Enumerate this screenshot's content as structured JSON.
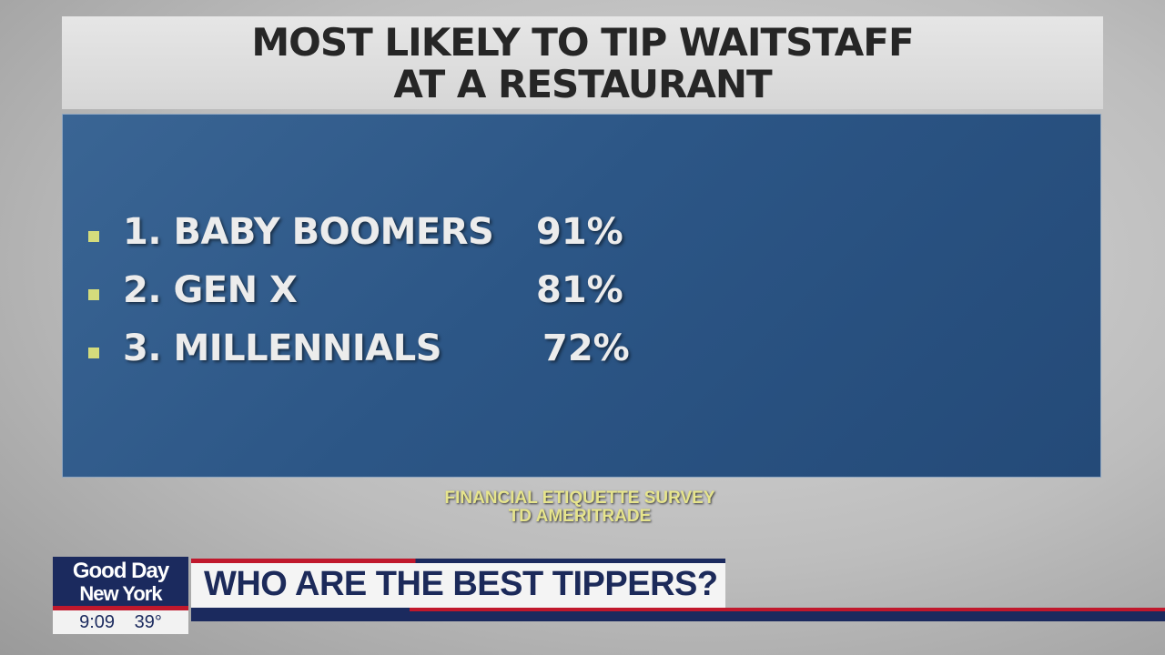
{
  "graphic": {
    "title_line1": "MOST LIKELY TO TIP WAITSTAFF",
    "title_line2": "AT A RESTAURANT",
    "items": [
      {
        "label": "1. BABY BOOMERS",
        "value": "91%"
      },
      {
        "label": "2. GEN X",
        "value": "81%"
      },
      {
        "label": "3. MILLENNIALS",
        "value": "72%"
      }
    ],
    "source_line1": "FINANCIAL ETIQUETTE SURVEY",
    "source_line2": "TD AMERITRADE"
  },
  "lower_third": {
    "logo_line1": "Good Day",
    "logo_line2": "New York",
    "time": "9:09",
    "temperature": "39°",
    "headline": "WHO ARE THE BEST TIPPERS?"
  },
  "colors": {
    "navy": "#1b2a5e",
    "red": "#c0182c",
    "panel_blue": "#2c5686",
    "bullet": "#d4dc7c",
    "source_text": "#e6e48c"
  }
}
